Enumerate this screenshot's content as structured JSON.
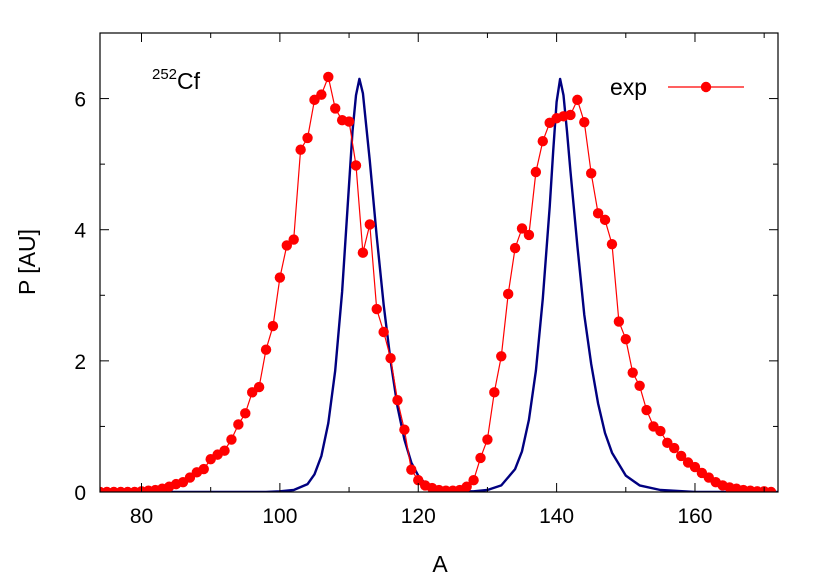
{
  "chart_data": {
    "type": "line",
    "annotation": {
      "superscript": "252",
      "text": "Cf"
    },
    "xlabel": "A",
    "ylabel": "P [AU]",
    "xlim": [
      74,
      172
    ],
    "ylim": [
      0,
      7
    ],
    "xticks": [
      80,
      100,
      120,
      140,
      160
    ],
    "yticks": [
      0,
      2,
      4,
      6
    ],
    "grid": false,
    "legend": {
      "position": "top-right",
      "entries": [
        "exp"
      ]
    },
    "colors": {
      "exp": "#ff0000",
      "theory": "#000080"
    },
    "series": [
      {
        "name": "exp",
        "marker": "circle",
        "x": [
          74,
          75,
          76,
          77,
          78,
          79,
          80,
          81,
          82,
          83,
          84,
          85,
          86,
          87,
          88,
          89,
          90,
          91,
          92,
          93,
          94,
          95,
          96,
          97,
          98,
          99,
          100,
          101,
          102,
          103,
          104,
          105,
          106,
          107,
          108,
          109,
          110,
          111,
          112,
          113,
          114,
          115,
          116,
          117,
          118,
          119,
          120,
          121,
          122,
          123,
          124,
          125,
          126,
          127,
          128,
          129,
          130,
          131,
          132,
          133,
          134,
          135,
          136,
          137,
          138,
          139,
          140,
          141,
          142,
          143,
          144,
          145,
          146,
          147,
          148,
          149,
          150,
          151,
          152,
          153,
          154,
          155,
          156,
          157,
          158,
          159,
          160,
          161,
          162,
          163,
          164,
          165,
          166,
          167,
          168,
          169,
          170,
          171
        ],
        "values": [
          0.0,
          0.0,
          0.0,
          0.0,
          0.0,
          0.0,
          0.01,
          0.02,
          0.03,
          0.05,
          0.08,
          0.12,
          0.15,
          0.22,
          0.3,
          0.35,
          0.5,
          0.57,
          0.63,
          0.8,
          1.03,
          1.2,
          1.52,
          1.6,
          2.17,
          2.53,
          3.27,
          3.76,
          3.85,
          5.22,
          5.4,
          5.98,
          6.06,
          6.33,
          5.85,
          5.67,
          5.65,
          4.98,
          3.65,
          4.08,
          2.79,
          2.44,
          2.04,
          1.4,
          0.95,
          0.34,
          0.18,
          0.1,
          0.06,
          0.03,
          0.02,
          0.02,
          0.03,
          0.08,
          0.18,
          0.52,
          0.8,
          1.52,
          2.07,
          3.02,
          3.72,
          4.02,
          3.92,
          4.88,
          5.35,
          5.63,
          5.7,
          5.73,
          5.75,
          5.98,
          5.64,
          4.86,
          4.25,
          4.15,
          3.78,
          2.6,
          2.33,
          1.82,
          1.62,
          1.25,
          1.0,
          0.93,
          0.75,
          0.67,
          0.55,
          0.45,
          0.38,
          0.29,
          0.22,
          0.15,
          0.1,
          0.07,
          0.05,
          0.03,
          0.02,
          0.01,
          0.01,
          0.0
        ]
      },
      {
        "x": [
          74,
          80,
          90,
          95,
          98,
          100,
          102,
          104,
          105,
          106,
          107,
          108,
          109,
          110,
          110.5,
          111,
          111.5,
          112,
          113,
          114,
          115,
          116,
          117,
          118,
          119,
          120,
          121,
          122,
          124,
          126,
          128,
          130,
          132,
          134,
          135,
          136,
          137,
          138,
          139,
          139.5,
          140,
          140.5,
          141,
          141.5,
          142,
          143,
          144,
          145,
          146,
          147,
          148,
          150,
          152,
          155,
          160,
          165,
          172
        ],
        "values": [
          0.0,
          0.0,
          0.0,
          0.0,
          0.0,
          0.01,
          0.03,
          0.12,
          0.27,
          0.55,
          1.05,
          1.85,
          3.05,
          4.7,
          5.5,
          6.05,
          6.3,
          6.08,
          5.05,
          3.9,
          2.85,
          2.0,
          1.3,
          0.8,
          0.45,
          0.25,
          0.13,
          0.07,
          0.02,
          0.01,
          0.01,
          0.03,
          0.1,
          0.35,
          0.62,
          1.1,
          1.85,
          2.95,
          4.35,
          5.2,
          5.95,
          6.3,
          6.05,
          5.5,
          4.9,
          3.75,
          2.7,
          1.95,
          1.35,
          0.9,
          0.6,
          0.25,
          0.1,
          0.03,
          0.0,
          0.0,
          0.0
        ]
      }
    ]
  }
}
